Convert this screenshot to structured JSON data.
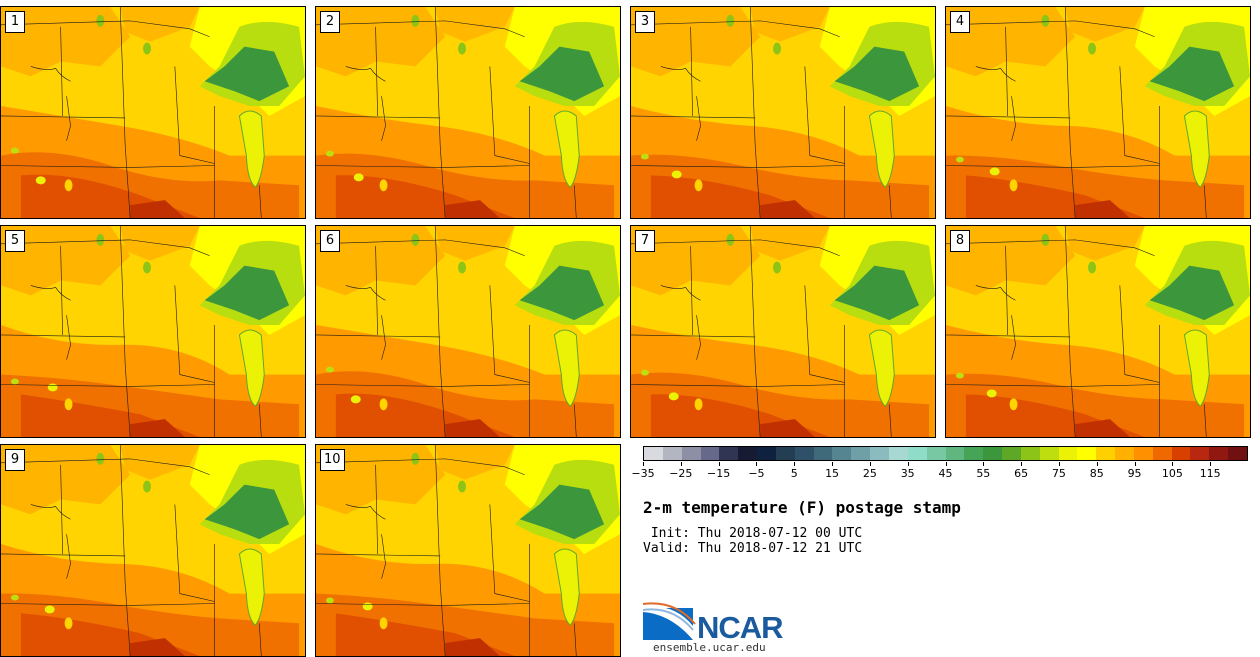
{
  "figure": {
    "title": "2-m temperature (F) postage stamp",
    "init": " Init: Thu 2018-07-12 00 UTC",
    "valid": "Valid: Thu 2018-07-12 21 UTC",
    "logo": "NCAR",
    "website": "ensemble.ucar.edu"
  },
  "members": [
    {
      "label": "1"
    },
    {
      "label": "2"
    },
    {
      "label": "3"
    },
    {
      "label": "4"
    },
    {
      "label": "5"
    },
    {
      "label": "6"
    },
    {
      "label": "7"
    },
    {
      "label": "8"
    },
    {
      "label": "9"
    },
    {
      "label": "10"
    }
  ],
  "colorbar": {
    "colors": [
      "#d9d9e0",
      "#b3b5c0",
      "#8d8fa5",
      "#67698a",
      "#2f3552",
      "#161b33",
      "#0e2240",
      "#233d52",
      "#2e5068",
      "#3f6a7a",
      "#558590",
      "#6fa0a8",
      "#8abcbf",
      "#a8d8d2",
      "#8fdcc8",
      "#78c8a4",
      "#5fb77f",
      "#46a456",
      "#3c963c",
      "#5ea828",
      "#8cc418",
      "#bede10",
      "#ecf205",
      "#ffff00",
      "#ffd000",
      "#ffb000",
      "#ff9000",
      "#f06800",
      "#d84000",
      "#b82810",
      "#901810",
      "#701010"
    ],
    "ticks": [
      "−35",
      "−25",
      "−15",
      "−5",
      "5",
      "15",
      "25",
      "35",
      "45",
      "55",
      "65",
      "75",
      "85",
      "95",
      "105",
      "115"
    ]
  }
}
